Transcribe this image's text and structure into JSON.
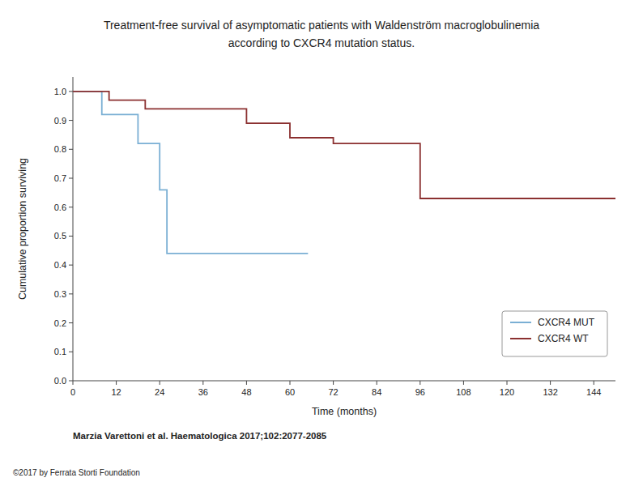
{
  "chart_data": {
    "type": "step",
    "title": "Treatment-free survival of asymptomatic patients with Waldenström macroglobulinemia",
    "subtitle": "according to CXCR4 mutation status.",
    "x_label": "Time (months)",
    "y_label": "Cumulative proportion surviving",
    "xlim": [
      0,
      150
    ],
    "ylim": [
      0.0,
      1.05
    ],
    "xticks": [
      0,
      12,
      24,
      36,
      48,
      60,
      72,
      84,
      96,
      108,
      120,
      132,
      144
    ],
    "yticks": [
      {
        "value": 0.0,
        "label": "0.0"
      },
      0.1,
      0.2,
      0.3,
      0.4,
      0.5,
      0.6,
      0.7,
      0.8,
      0.9,
      {
        "value": 1.0,
        "label": "1.0"
      }
    ],
    "series": [
      {
        "name": "CXCR4 MUT",
        "color": "#7aafd4",
        "x": [
          0,
          8,
          8,
          18,
          18,
          24,
          24,
          26,
          26,
          54,
          54,
          65
        ],
        "values": [
          1.0,
          1.0,
          0.92,
          0.92,
          0.82,
          0.82,
          0.66,
          0.66,
          0.44,
          0.44,
          0.44,
          0.44
        ]
      },
      {
        "name": "CXCR4 WT",
        "color": "#8b3030",
        "x": [
          0,
          10,
          10,
          20,
          20,
          48,
          48,
          60,
          60,
          72,
          72,
          84,
          84,
          96,
          96,
          150
        ],
        "values": [
          1.0,
          1.0,
          0.97,
          0.97,
          0.94,
          0.94,
          0.89,
          0.89,
          0.84,
          0.84,
          0.82,
          0.82,
          0.82,
          0.82,
          0.63,
          0.63
        ]
      }
    ],
    "legend": "lower right",
    "grid": false,
    "annotations": [
      "Marzia Varettoni et al. Haematologica 2017;102:2077-2085",
      "©2017 by Ferrata Storti Foundation"
    ]
  }
}
